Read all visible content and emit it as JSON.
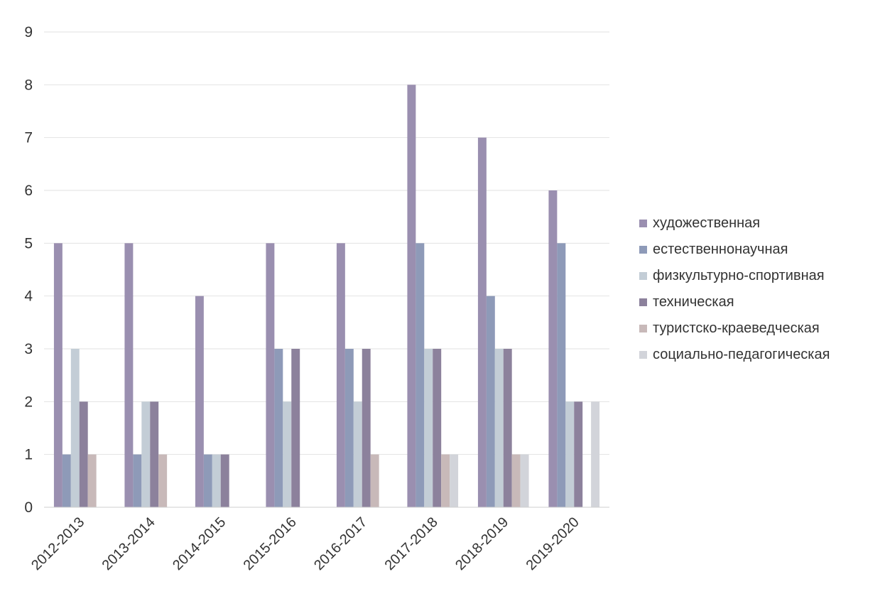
{
  "chart_data": {
    "type": "bar",
    "categories": [
      "2012-2013",
      "2013-2014",
      "2014-2015",
      "2015-2016",
      "2016-2017",
      "2017-2018",
      "2018-2019",
      "2019-2020"
    ],
    "series": [
      {
        "name": "художественная",
        "color": "#9a8fb0",
        "values": [
          5,
          5,
          4,
          5,
          5,
          8,
          7,
          6
        ]
      },
      {
        "name": "естественнонаучная",
        "color": "#8e9ab8",
        "values": [
          1,
          1,
          1,
          3,
          3,
          5,
          4,
          5
        ]
      },
      {
        "name": "физкультурно-спортивная",
        "color": "#c3cdd6",
        "values": [
          3,
          2,
          1,
          2,
          2,
          3,
          3,
          2
        ]
      },
      {
        "name": "техническая",
        "color": "#8c819c",
        "values": [
          2,
          2,
          1,
          3,
          3,
          3,
          3,
          2
        ]
      },
      {
        "name": "туристско-краеведческая",
        "color": "#c8b9b9",
        "values": [
          1,
          1,
          0,
          0,
          1,
          1,
          1,
          0
        ]
      },
      {
        "name": "социально-педагогическая",
        "color": "#d2d4da",
        "values": [
          0,
          0,
          0,
          0,
          0,
          1,
          1,
          2
        ]
      }
    ],
    "ylim": [
      0,
      9
    ],
    "yticks": [
      "0",
      "1",
      "2",
      "3",
      "4",
      "5",
      "6",
      "7",
      "8",
      "9"
    ],
    "grid": true,
    "legend_position": "right"
  }
}
